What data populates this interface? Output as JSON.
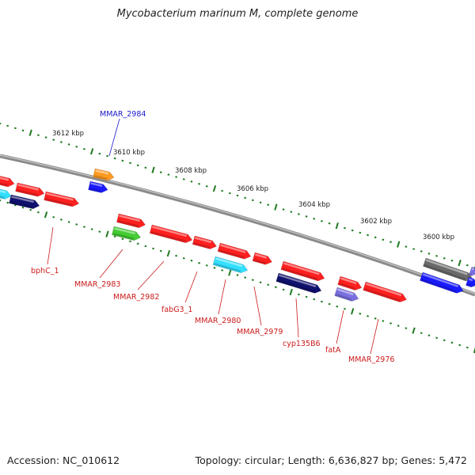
{
  "title": "Mycobacterium marinum M, complete genome",
  "accession": "Accession: NC_010612",
  "topology": "Topology: circular; Length: 6,636,827 bp; Genes: 5,472",
  "colors": {
    "backbone": "#808080",
    "tick": "#1e7a1e",
    "label_forward": "#1a1acc",
    "label_reverse": "#cc1a1a",
    "gene_red": "#ff2020",
    "gene_navy": "#10106e",
    "gene_blue": "#1a1aff",
    "gene_cyan": "#33e0ff",
    "gene_green": "#44cc33",
    "gene_orange": "#ff9a20",
    "gene_slate": "#7a6fe0",
    "gene_gray": "#6a6a6a"
  },
  "scale_labels": [
    "3612 kbp",
    "3610 kbp",
    "3608 kbp",
    "3606 kbp",
    "3604 kbp",
    "3602 kbp",
    "3600 kbp"
  ],
  "gene_labels": [
    {
      "text": "MMAR_2984",
      "strand": "forward"
    },
    {
      "text": "bphC_1",
      "strand": "reverse"
    },
    {
      "text": "MMAR_2983",
      "strand": "reverse"
    },
    {
      "text": "MMAR_2982",
      "strand": "reverse"
    },
    {
      "text": "fabG3_1",
      "strand": "reverse"
    },
    {
      "text": "MMAR_2980",
      "strand": "reverse"
    },
    {
      "text": "MMAR_2979",
      "strand": "reverse"
    },
    {
      "text": "cyp135B6",
      "strand": "reverse"
    },
    {
      "text": "fatA",
      "strand": "reverse"
    },
    {
      "text": "MMAR_2976",
      "strand": "reverse"
    }
  ]
}
